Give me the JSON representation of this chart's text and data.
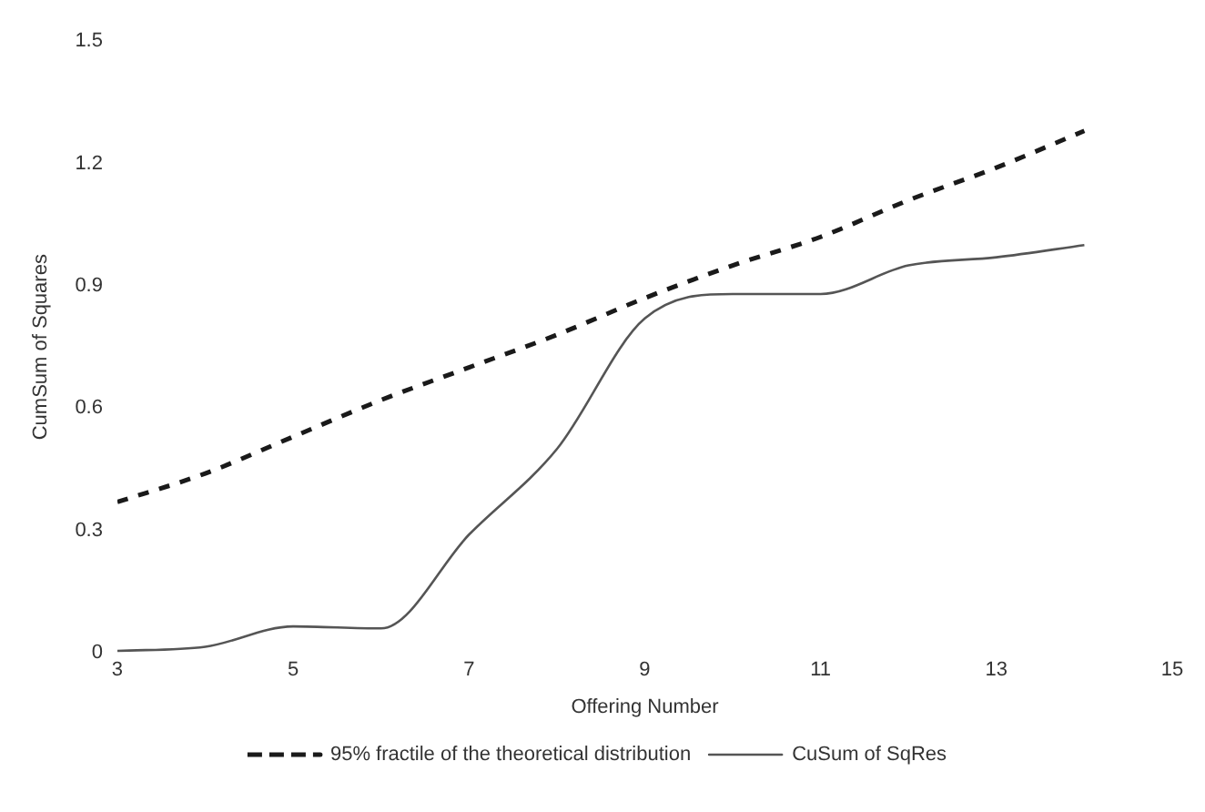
{
  "chart_data": {
    "type": "line",
    "xlabel": "Offering Number",
    "ylabel": "CumSum of Squares",
    "x": [
      3,
      4,
      5,
      6,
      7,
      8,
      9,
      10,
      11,
      12,
      13,
      14
    ],
    "series": [
      {
        "name": "95% fractile of the theoretical distribution",
        "color": "#1a1a1a",
        "line_style": "dashed",
        "values": [
          0.37,
          0.44,
          0.53,
          0.62,
          0.7,
          0.78,
          0.87,
          0.95,
          1.02,
          1.11,
          1.19,
          1.28
        ]
      },
      {
        "name": "CuSum of SqRes",
        "color": "#555555",
        "line_style": "solid",
        "values": [
          0.005,
          0.015,
          0.065,
          0.06,
          0.29,
          0.5,
          0.82,
          0.88,
          0.88,
          0.95,
          0.97,
          1.0
        ]
      }
    ],
    "xlim": [
      3,
      15
    ],
    "xticks": [
      3,
      5,
      7,
      9,
      11,
      13,
      15
    ],
    "ylim": [
      0,
      1.5
    ],
    "yticks": [
      0,
      0.3,
      0.6,
      0.9,
      1.2,
      1.5
    ],
    "grid": false,
    "legend": "bottom",
    "marker": "none"
  }
}
